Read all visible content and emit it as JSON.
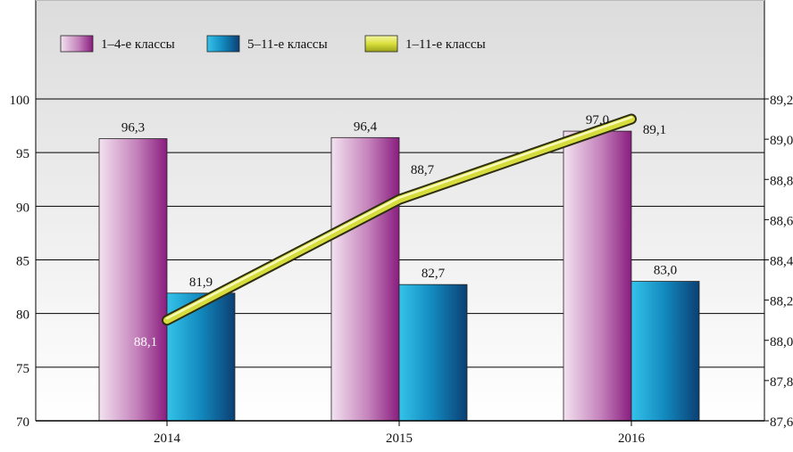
{
  "chart_data": {
    "type": "bar",
    "categories": [
      "2014",
      "2015",
      "2016"
    ],
    "left_axis": {
      "ylim": [
        70,
        100
      ],
      "ticks": [
        "70",
        "75",
        "80",
        "85",
        "90",
        "95",
        "100"
      ]
    },
    "right_axis": {
      "ylim": [
        87.6,
        89.2
      ],
      "ticks": [
        "87,6",
        "87,8",
        "88,0",
        "88,2",
        "88,4",
        "88,6",
        "88,8",
        "89,0",
        "89,2"
      ]
    },
    "series": [
      {
        "name": "1–4-е классы",
        "type": "bar",
        "axis": "left",
        "values": [
          96.3,
          96.4,
          97.0
        ],
        "labels": [
          "96,3",
          "96,4",
          "97,0"
        ],
        "color": "#9b2f8f"
      },
      {
        "name": "5–11-е классы",
        "type": "bar",
        "axis": "left",
        "values": [
          81.9,
          82.7,
          83.0
        ],
        "labels": [
          "81,9",
          "82,7",
          "83,0"
        ],
        "color": "#0a76a8"
      },
      {
        "name": "1–11-е классы",
        "type": "line",
        "axis": "right",
        "values": [
          88.1,
          88.7,
          89.1
        ],
        "labels": [
          "88,1",
          "88,7",
          "89,1"
        ],
        "color": "#d6dc3c"
      }
    ],
    "legend_position": "top-left",
    "grid": true
  }
}
